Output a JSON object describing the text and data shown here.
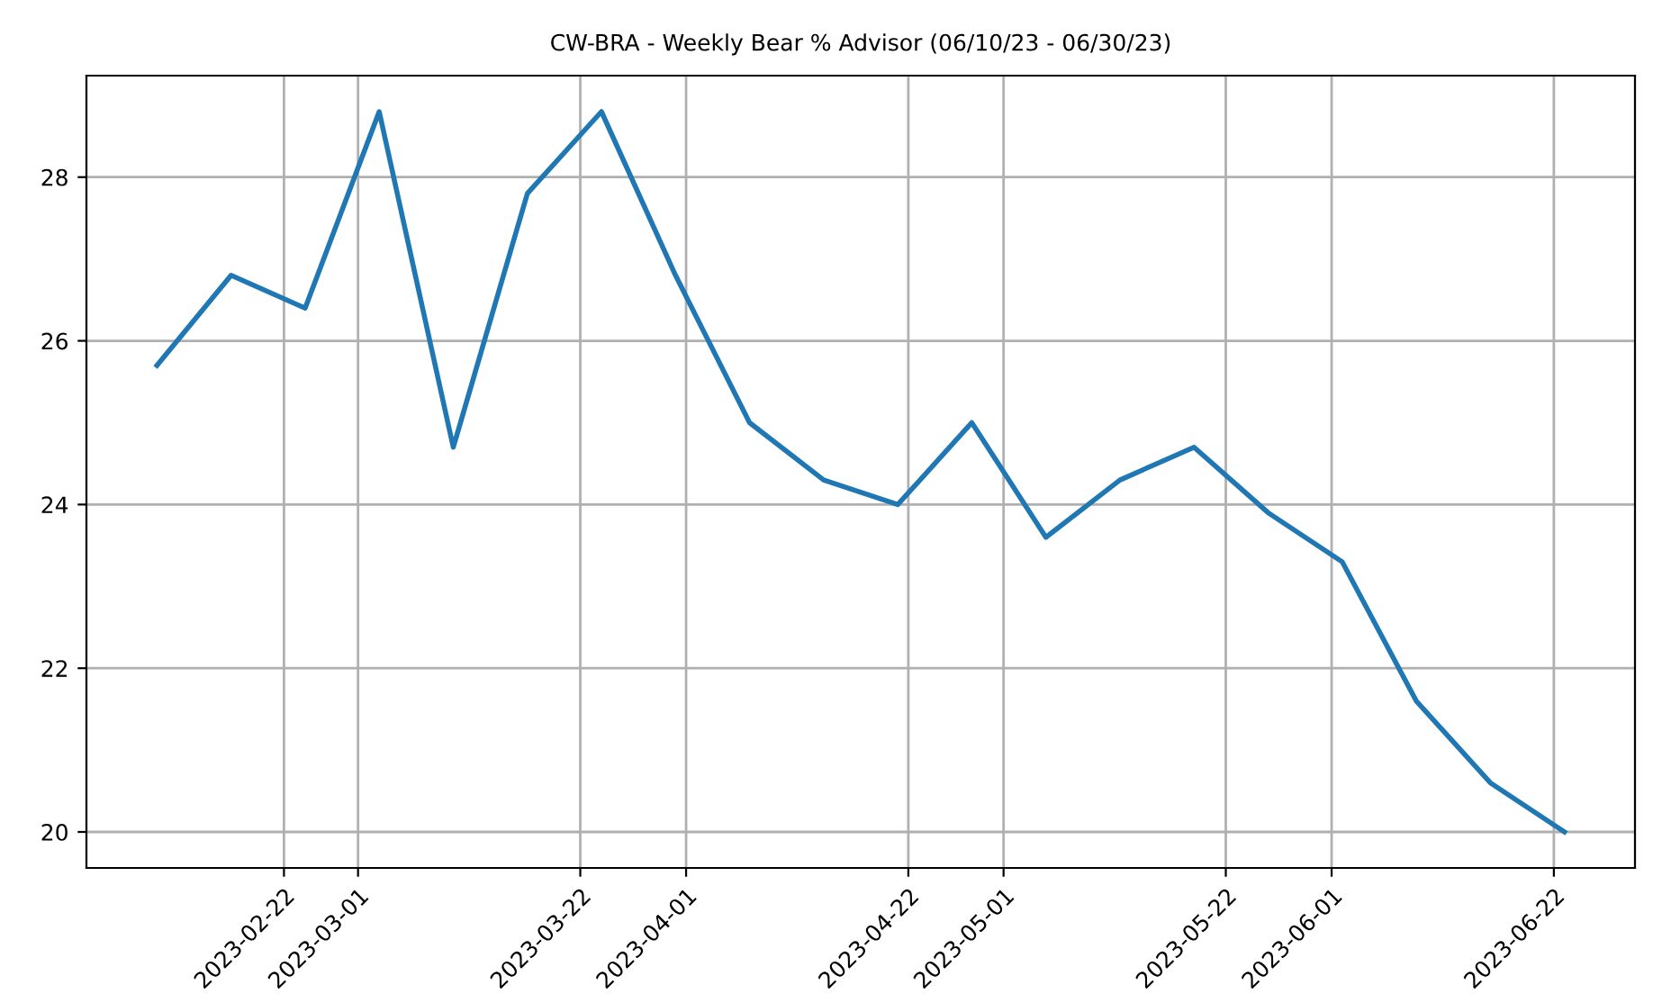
{
  "chart_data": {
    "type": "line",
    "title": "CW-BRA - Weekly Bear % Advisor (06/10/23 - 06/30/23)",
    "x": [
      "2023-02-10",
      "2023-02-17",
      "2023-02-24",
      "2023-03-03",
      "2023-03-10",
      "2023-03-17",
      "2023-03-24",
      "2023-03-31",
      "2023-04-07",
      "2023-04-14",
      "2023-04-21",
      "2023-04-28",
      "2023-05-05",
      "2023-05-12",
      "2023-05-19",
      "2023-05-26",
      "2023-06-02",
      "2023-06-09",
      "2023-06-16",
      "2023-06-23"
    ],
    "series": [
      {
        "color": "#1f77b4",
        "values": [
          25.7,
          26.8,
          26.4,
          28.8,
          24.7,
          27.8,
          28.8,
          26.8,
          25.0,
          24.3,
          24.0,
          25.0,
          23.6,
          24.3,
          24.7,
          23.9,
          23.3,
          21.6,
          20.6,
          20.0
        ]
      }
    ],
    "xlim": [
      "2023-02-03T08:00",
      "2023-06-29T16:00"
    ],
    "xticks": [
      "2023-02-22",
      "2023-03-01",
      "2023-03-22",
      "2023-04-01",
      "2023-04-22",
      "2023-05-01",
      "2023-05-22",
      "2023-06-01",
      "2023-06-22"
    ],
    "ylim": [
      19.56,
      29.24
    ],
    "yticks": [
      20,
      22,
      24,
      26,
      28
    ],
    "grid": true,
    "marker": "none",
    "line_style": "solid"
  }
}
